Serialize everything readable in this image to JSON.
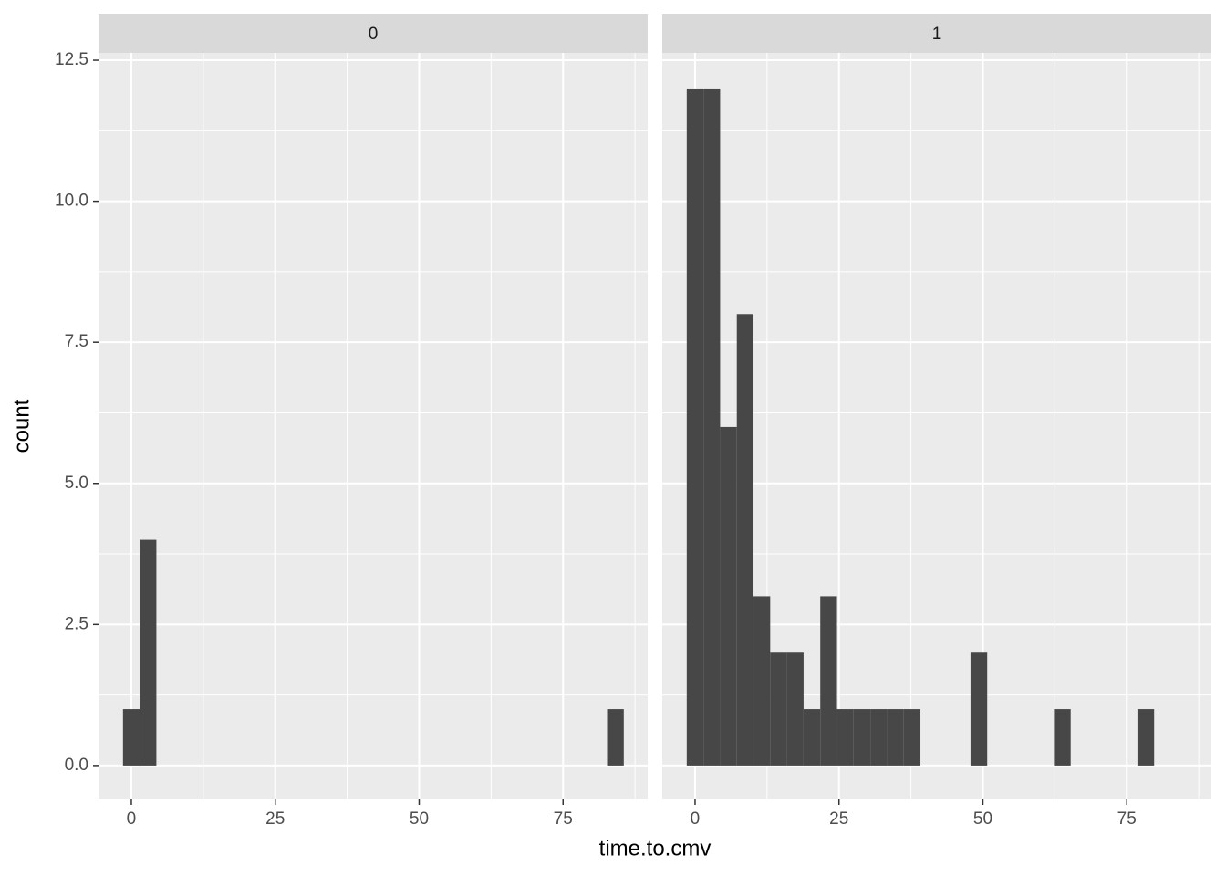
{
  "chart_data": {
    "type": "histogram",
    "xlabel": "time.to.cmv",
    "ylabel": "count",
    "color": "#474747",
    "grid": true,
    "xlim": [
      -5.7,
      89.7
    ],
    "xticks": [
      0,
      25,
      50,
      75
    ],
    "ylim": [
      -0.6,
      12.63
    ],
    "yticks": [
      {
        "value": 0,
        "label": "0.0"
      },
      {
        "value": 2.5,
        "label": "2.5"
      },
      {
        "value": 5,
        "label": "5.0"
      },
      {
        "value": 7.5,
        "label": "7.5"
      },
      {
        "value": 10,
        "label": "10.0"
      },
      {
        "value": 12.5,
        "label": "12.5"
      }
    ],
    "bins": [
      -1.45,
      1.45,
      4.35,
      7.25,
      10.15,
      13.05,
      15.95,
      18.85,
      21.75,
      24.65,
      27.55,
      30.45,
      33.35,
      36.25,
      39.15,
      42.05,
      44.95,
      47.85,
      50.75,
      53.65,
      56.55,
      59.45,
      62.35,
      65.25,
      68.15,
      71.05,
      73.95,
      76.85,
      79.75,
      82.65,
      85.55
    ],
    "panels": [
      {
        "title": "0",
        "counts": [
          1,
          4,
          0,
          0,
          0,
          0,
          0,
          0,
          0,
          0,
          0,
          0,
          0,
          0,
          0,
          0,
          0,
          0,
          0,
          0,
          0,
          0,
          0,
          0,
          0,
          0,
          0,
          0,
          0,
          1
        ]
      },
      {
        "title": "1",
        "counts": [
          12,
          12,
          6,
          8,
          3,
          2,
          2,
          1,
          3,
          1,
          1,
          1,
          1,
          1,
          0,
          0,
          0,
          2,
          0,
          0,
          0,
          0,
          1,
          0,
          0,
          0,
          0,
          1,
          0,
          0
        ]
      }
    ]
  }
}
